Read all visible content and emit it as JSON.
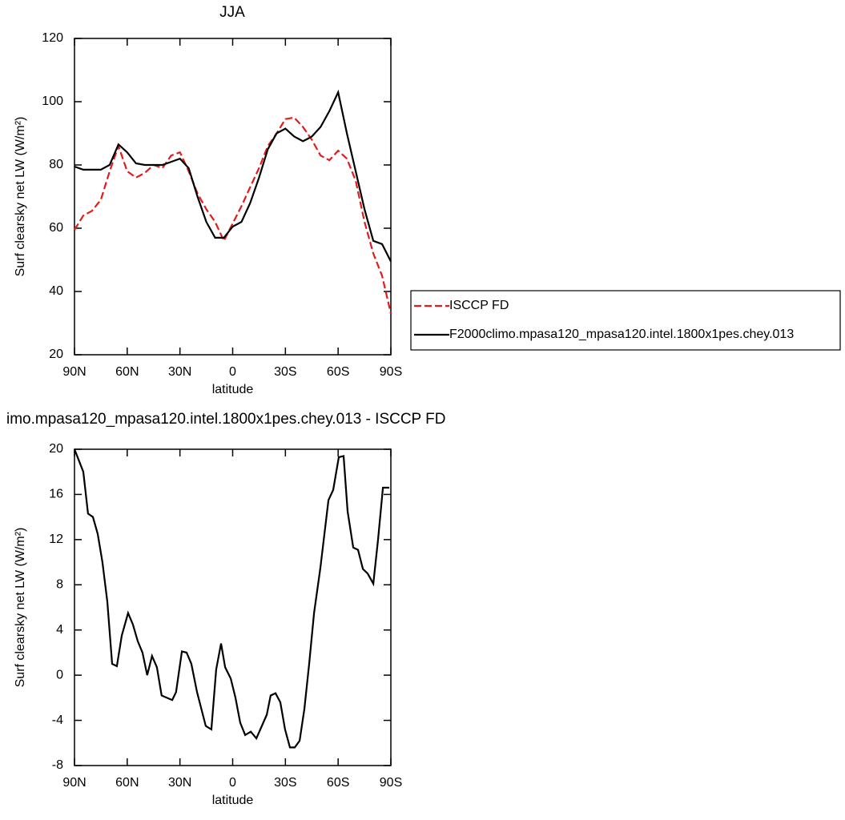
{
  "chart_data": [
    {
      "type": "line",
      "title": "JJA",
      "xlabel": "latitude",
      "ylabel": "Surf clearsky net LW (W/m²)",
      "x": [
        90,
        85,
        80,
        75,
        70,
        65,
        60,
        55,
        50,
        45,
        40,
        35,
        30,
        25,
        20,
        15,
        10,
        5,
        0,
        -5,
        -10,
        -15,
        -20,
        -25,
        -30,
        -35,
        -40,
        -45,
        -50,
        -55,
        -60,
        -65,
        -70,
        -75,
        -80,
        -85,
        -90
      ],
      "series": [
        {
          "name": "ISCCP FD",
          "color": "#e41a1c",
          "dash": true,
          "values": [
            59.5,
            64,
            65.5,
            69,
            78,
            86,
            78,
            76,
            77.5,
            80,
            79,
            83,
            84,
            78,
            71,
            66,
            62,
            56,
            61.5,
            67,
            73,
            79,
            86,
            90,
            94.5,
            95,
            92,
            88,
            83,
            81.5,
            84.5,
            82,
            75,
            62,
            52,
            45,
            33
          ]
        },
        {
          "name": "F2000climo.mpasa120_mpasa120.intel.1800x1pes.chey.013",
          "color": "#000000",
          "dash": false,
          "values": [
            79.5,
            78.5,
            78.5,
            78.5,
            80,
            86.5,
            84,
            80.5,
            80,
            80,
            80,
            81,
            82,
            79,
            70,
            62,
            57,
            57,
            60.5,
            62,
            68,
            76,
            85,
            90,
            91.5,
            89,
            87.5,
            89,
            92,
            97,
            103,
            90,
            78,
            66,
            56,
            55,
            49.5
          ]
        }
      ],
      "xlim": [
        90,
        -90
      ],
      "xticks": [
        {
          "value": 90,
          "label": "90N"
        },
        {
          "value": 60,
          "label": "60N"
        },
        {
          "value": 30,
          "label": "30N"
        },
        0,
        {
          "value": -30,
          "label": "30S"
        },
        {
          "value": -60,
          "label": "60S"
        },
        {
          "value": -90,
          "label": "90S"
        }
      ],
      "ylim": [
        20,
        120
      ],
      "yticks": [
        20,
        40,
        60,
        80,
        100,
        120
      ],
      "legend": "right"
    },
    {
      "type": "line",
      "title": "imo.mpasa120_mpasa120.intel.1800x1pes.chey.013 - ISCCP FD",
      "xlabel": "latitude",
      "ylabel": "Surf clearsky net LW (W/m²)",
      "x": [
        90,
        85,
        82.3,
        79.5,
        76.8,
        74.1,
        71.3,
        68.6,
        65.9,
        63.1,
        59.5,
        56.8,
        54,
        51.3,
        48.6,
        45.9,
        43.1,
        40.4,
        34.4,
        32.2,
        28.9,
        26.2,
        23.5,
        20.3,
        15.3,
        12.1,
        9.4,
        6.6,
        4.3,
        1.1,
        -1.6,
        -4.3,
        -7.1,
        -10.3,
        -13.5,
        -19.4,
        -21.6,
        -24.4,
        -27.1,
        -29.8,
        -32.6,
        -35.3,
        -38.1,
        -40.8,
        -43.5,
        -46.3,
        -49.9,
        -54.5,
        -57.2,
        -60.4,
        -63.1,
        -65.4,
        -68.6,
        -71.3,
        -74.1,
        -76.8,
        -80,
        -82.7,
        -85.5,
        -89.1
      ],
      "series": [
        {
          "color": "#000000",
          "dash": false,
          "values": [
            20,
            18,
            14.3,
            14,
            12.5,
            10,
            6.5,
            1,
            0.8,
            3.5,
            5.5,
            4.5,
            3,
            2,
            0,
            1.7,
            0.7,
            -1.8,
            -2.2,
            -1.5,
            2.1,
            2,
            1,
            -1.5,
            -4.5,
            -4.8,
            0.5,
            2.8,
            0.7,
            -0.3,
            -2,
            -4.2,
            -5.3,
            -5,
            -5.6,
            -3.5,
            -1.8,
            -1.6,
            -2.4,
            -4.8,
            -6.4,
            -6.4,
            -5.8,
            -3,
            1,
            5.5,
            9.5,
            15.5,
            16.4,
            19.3,
            19.4,
            14.5,
            11.3,
            11.1,
            9.4,
            9,
            8.1,
            12,
            16.6,
            16.6
          ]
        }
      ],
      "xlim": [
        90,
        -90
      ],
      "xticks": [
        {
          "value": 90,
          "label": "90N"
        },
        {
          "value": 60,
          "label": "60N"
        },
        {
          "value": 30,
          "label": "30N"
        },
        0,
        {
          "value": -30,
          "label": "30S"
        },
        {
          "value": -60,
          "label": "60S"
        },
        {
          "value": -90,
          "label": "90S"
        }
      ],
      "ylim": [
        -8,
        20
      ],
      "yticks": [
        -8,
        -4,
        0,
        4,
        8,
        12,
        16,
        20
      ]
    }
  ]
}
